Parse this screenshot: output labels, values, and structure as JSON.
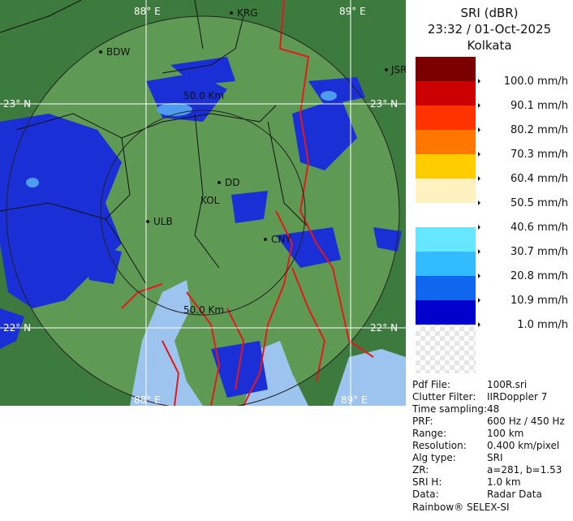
{
  "header": {
    "title": "SRI (dBR)",
    "time": "23:32 / 01-Oct-2025",
    "site": "Kolkata"
  },
  "legend": [
    {
      "color": "#7a0000",
      "label": "100.0 mm/h"
    },
    {
      "color": "#cc0000",
      "label": "90.1 mm/h"
    },
    {
      "color": "#ff3300",
      "label": "80.2 mm/h"
    },
    {
      "color": "#ff7700",
      "label": "70.3 mm/h"
    },
    {
      "color": "#ffcc00",
      "label": "60.4 mm/h"
    },
    {
      "color": "#fff2c0",
      "label": "50.5 mm/h"
    },
    {
      "color": "#ffffff",
      "label": "40.6 mm/h"
    },
    {
      "color": "#66e6ff",
      "label": "30.7 mm/h"
    },
    {
      "color": "#33bbff",
      "label": "20.8 mm/h"
    },
    {
      "color": "#1166ee",
      "label": "10.9 mm/h"
    },
    {
      "color": "#0000cc",
      "label": "1.0 mm/h"
    }
  ],
  "map": {
    "lon_labels": [
      "88° E",
      "89° E"
    ],
    "lat_labels": [
      "23° N",
      "22° N"
    ],
    "cities": [
      "KRG",
      "BDW",
      "JSR",
      "DD",
      "KOL",
      "ULB",
      "CNY"
    ],
    "ring_label": "50.0 Km"
  },
  "info": [
    {
      "label": "Pdf File:",
      "value": "100R.sri"
    },
    {
      "label": "Clutter Filter:",
      "value": "IIRDoppler 7"
    },
    {
      "label": "Time sampling:",
      "value": "48"
    },
    {
      "label": "PRF:",
      "value": "600 Hz / 450 Hz"
    },
    {
      "label": "Range:",
      "value": "100 km"
    },
    {
      "label": "Resolution:",
      "value": "0.400 km/pixel"
    },
    {
      "label": "Alg type:",
      "value": "SRI"
    },
    {
      "label": "ZR:",
      "value": "a=281, b=1.53"
    },
    {
      "label": "SRI H:",
      "value": "1.0 km"
    },
    {
      "label": "Data:",
      "value": "Radar Data"
    }
  ],
  "footer": "Rainbow® SELEX-SI"
}
